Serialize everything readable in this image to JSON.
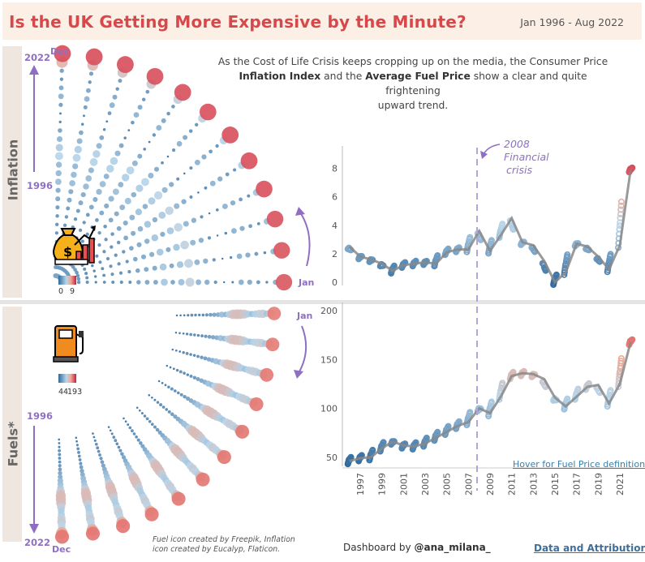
{
  "header": {
    "title": "Is the UK Getting More Expensive by the Minute?",
    "date_range": "Jan 1996 - Aug 2022"
  },
  "intro": {
    "line1": "As the Cost of Life Crisis keeps cropping up on the media, the Consumer Price",
    "bold1": "Inflation Index",
    "mid": "and the",
    "bold2": "Average Fuel Price",
    "tail": "show a clear and quite frightening",
    "line3": "upward trend."
  },
  "sections": {
    "inflation_label": "Inflation",
    "fuels_label": "Fuels*"
  },
  "radial_labels": {
    "inf_top_year": "2022",
    "inf_bottom_year": "1996",
    "inf_dec": "Dec",
    "inf_jan": "Jan",
    "fuel_top_year": "1996",
    "fuel_bottom_year": "2022",
    "fuel_dec": "Dec",
    "fuel_jan": "Jan"
  },
  "legends": {
    "inflation_min": "0",
    "inflation_max": "9",
    "fuel_min": "44",
    "fuel_max": "193"
  },
  "annotation": {
    "line1": "2008",
    "line2": "Financial",
    "line3": "crisis"
  },
  "links": {
    "hover": "Hover for Fuel Price definition",
    "data_attribution": "Data and Attribution"
  },
  "footer": {
    "credits": "Fuel icon created by Freepik, Inflation icon created by Eucalyp, Flaticon.",
    "byline_prefix": "Dashboard by",
    "byline_handle": "@ana_milana_"
  },
  "colors": {
    "title": "#d8474a",
    "accent_purple": "#8f6fc3",
    "low": "#2f6a9f",
    "mid_low": "#b9d6ea",
    "mid_high": "#f1a58e",
    "high": "#c81d3f",
    "trend_line": "#888888"
  },
  "icons": {
    "inflation": "money-bag-chart-icon",
    "fuel": "fuel-pump-icon"
  },
  "chart_data": [
    {
      "type": "line",
      "name": "inflation",
      "x": [
        1996,
        1997,
        1998,
        1999,
        2000,
        2001,
        2002,
        2003,
        2004,
        2005,
        2006,
        2007,
        2008,
        2009,
        2010,
        2011,
        2012,
        2013,
        2014,
        2015,
        2016,
        2017,
        2018,
        2019,
        2020,
        2021,
        2022
      ],
      "y": [
        2.5,
        1.8,
        1.6,
        1.3,
        0.8,
        1.2,
        1.3,
        1.4,
        1.3,
        2.1,
        2.3,
        2.3,
        3.6,
        2.2,
        3.3,
        4.5,
        2.8,
        2.6,
        1.5,
        0.0,
        0.7,
        2.7,
        2.5,
        1.8,
        0.9,
        2.6,
        7.9
      ],
      "ylim": [
        0,
        9
      ],
      "yticks": [
        0,
        2,
        4,
        6,
        8
      ],
      "ylabel": "",
      "xlabel": ""
    },
    {
      "type": "line",
      "name": "fuel",
      "x": [
        1996,
        1997,
        1998,
        1999,
        2000,
        2001,
        2002,
        2003,
        2004,
        2005,
        2006,
        2007,
        2008,
        2009,
        2010,
        2011,
        2012,
        2013,
        2014,
        2015,
        2016,
        2017,
        2018,
        2019,
        2020,
        2021,
        2022
      ],
      "y": [
        46,
        49,
        50,
        59,
        66,
        62,
        61,
        64,
        70,
        76,
        82,
        86,
        100,
        95,
        112,
        133,
        136,
        135,
        130,
        111,
        102,
        112,
        122,
        124,
        105,
        125,
        168
      ],
      "ylim": [
        44,
        200
      ],
      "yticks": [
        50,
        100,
        150,
        200
      ],
      "xticks": [
        "1997",
        "1999",
        "2001",
        "2003",
        "2005",
        "2007",
        "2009",
        "2011",
        "2013",
        "2015",
        "2017",
        "2019",
        "2021"
      ],
      "ylabel": "",
      "xlabel": ""
    }
  ]
}
